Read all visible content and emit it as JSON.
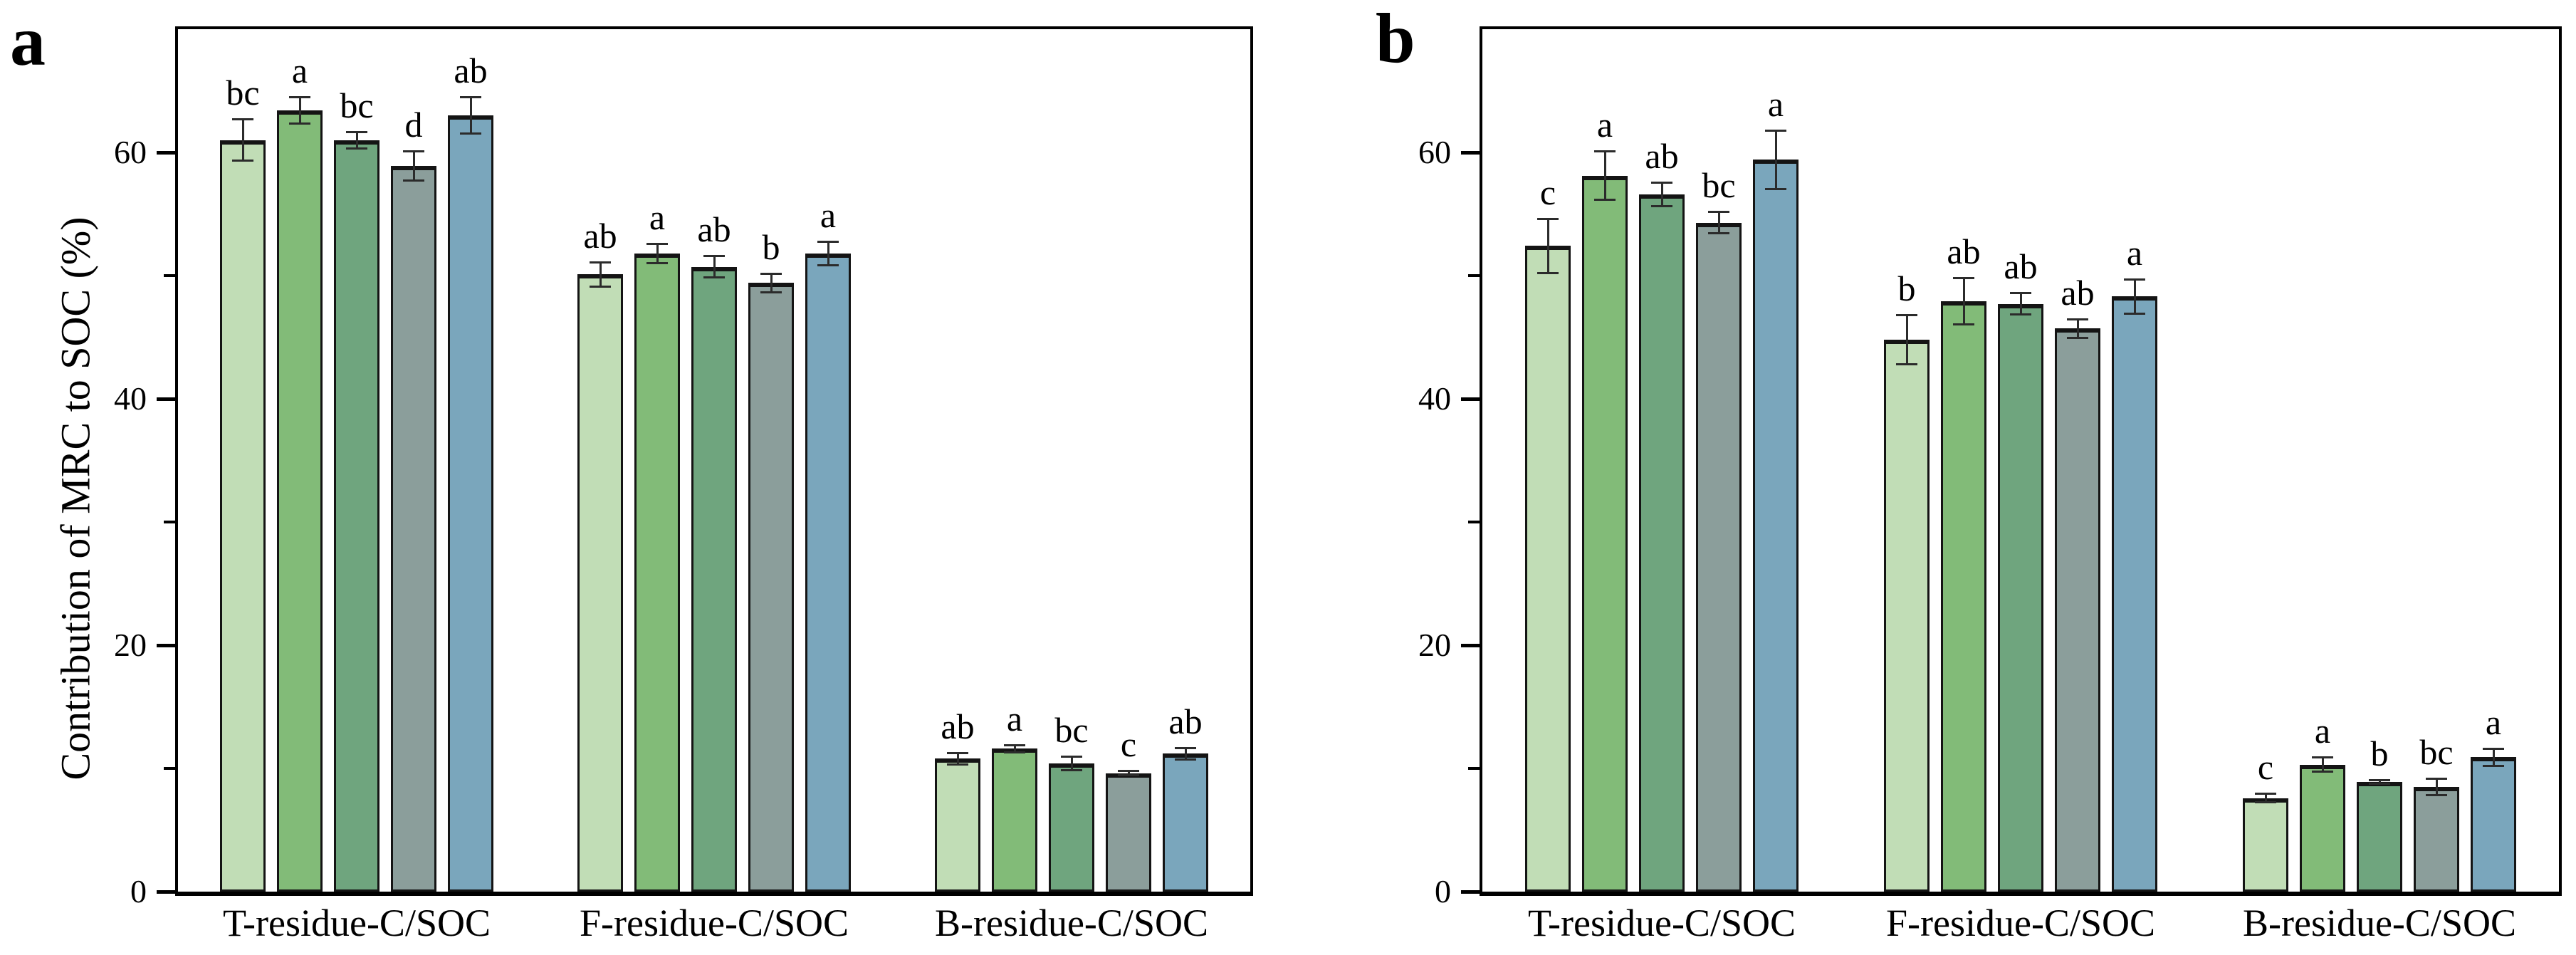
{
  "figure": {
    "background_color": "#ffffff",
    "y_axis": {
      "label": "Contribution of MRC to SOC (%)",
      "major_ticks": [
        0,
        20,
        40,
        60
      ],
      "minor_ticks": [
        10,
        30,
        50
      ],
      "limits": [
        0,
        70
      ]
    },
    "categories": [
      "T-residue-C/SOC",
      "F-residue-C/SOC",
      "B-residue-C/SOC"
    ],
    "bar_colors": [
      "#c1ddb6",
      "#82bb78",
      "#6fa57e",
      "#8b9e9b",
      "#7aa6bc"
    ],
    "bar_border_color": "#141414",
    "error_bar_color": "#2b2b2b",
    "panel_letters": [
      "a",
      "b"
    ]
  },
  "chart_data": [
    {
      "type": "bar",
      "panel_label": "a",
      "title": "",
      "xlabel": "",
      "ylabel": "Contribution of MRC to SOC (%)",
      "ylim": [
        0,
        70
      ],
      "grid": false,
      "legend": "none",
      "categories": [
        "T-residue-C/SOC",
        "F-residue-C/SOC",
        "B-residue-C/SOC"
      ],
      "series": [
        {
          "name": "series-1",
          "color": "#c1ddb6",
          "values": [
            61.0,
            50.1,
            10.8
          ],
          "errors": [
            1.7,
            1.0,
            0.5
          ],
          "sig_letters": [
            "bc",
            "ab",
            "ab"
          ]
        },
        {
          "name": "series-2",
          "color": "#82bb78",
          "values": [
            63.4,
            51.8,
            11.6
          ],
          "errors": [
            1.1,
            0.8,
            0.3
          ],
          "sig_letters": [
            "a",
            "a",
            "a"
          ]
        },
        {
          "name": "series-3",
          "color": "#6fa57e",
          "values": [
            61.0,
            50.7,
            10.4
          ],
          "errors": [
            0.7,
            0.9,
            0.6
          ],
          "sig_letters": [
            "bc",
            "ab",
            "bc"
          ]
        },
        {
          "name": "series-4",
          "color": "#8b9e9b",
          "values": [
            58.9,
            49.4,
            9.6
          ],
          "errors": [
            1.2,
            0.8,
            0.2
          ],
          "sig_letters": [
            "d",
            "b",
            "c"
          ]
        },
        {
          "name": "series-5",
          "color": "#7aa6bc",
          "values": [
            63.0,
            51.8,
            11.2
          ],
          "errors": [
            1.5,
            1.0,
            0.5
          ],
          "sig_letters": [
            "ab",
            "a",
            "ab"
          ]
        }
      ]
    },
    {
      "type": "bar",
      "panel_label": "b",
      "title": "",
      "xlabel": "",
      "ylabel": "",
      "ylim": [
        0,
        70
      ],
      "grid": false,
      "legend": "none",
      "categories": [
        "T-residue-C/SOC",
        "F-residue-C/SOC",
        "B-residue-C/SOC"
      ],
      "series": [
        {
          "name": "series-1",
          "color": "#c1ddb6",
          "values": [
            52.4,
            44.8,
            7.6
          ],
          "errors": [
            2.2,
            2.0,
            0.4
          ],
          "sig_letters": [
            "c",
            "b",
            "c"
          ]
        },
        {
          "name": "series-2",
          "color": "#82bb78",
          "values": [
            58.1,
            47.9,
            10.3
          ],
          "errors": [
            2.0,
            1.9,
            0.6
          ],
          "sig_letters": [
            "a",
            "ab",
            "a"
          ]
        },
        {
          "name": "series-3",
          "color": "#6fa57e",
          "values": [
            56.6,
            47.7,
            8.9
          ],
          "errors": [
            1.0,
            0.9,
            0.2
          ],
          "sig_letters": [
            "ab",
            "ab",
            "b"
          ]
        },
        {
          "name": "series-4",
          "color": "#8b9e9b",
          "values": [
            54.3,
            45.7,
            8.5
          ],
          "errors": [
            0.9,
            0.8,
            0.7
          ],
          "sig_letters": [
            "bc",
            "ab",
            "bc"
          ]
        },
        {
          "name": "series-5",
          "color": "#7aa6bc",
          "values": [
            59.4,
            48.3,
            10.9
          ],
          "errors": [
            2.4,
            1.4,
            0.7
          ],
          "sig_letters": [
            "a",
            "a",
            "a"
          ]
        }
      ]
    }
  ]
}
